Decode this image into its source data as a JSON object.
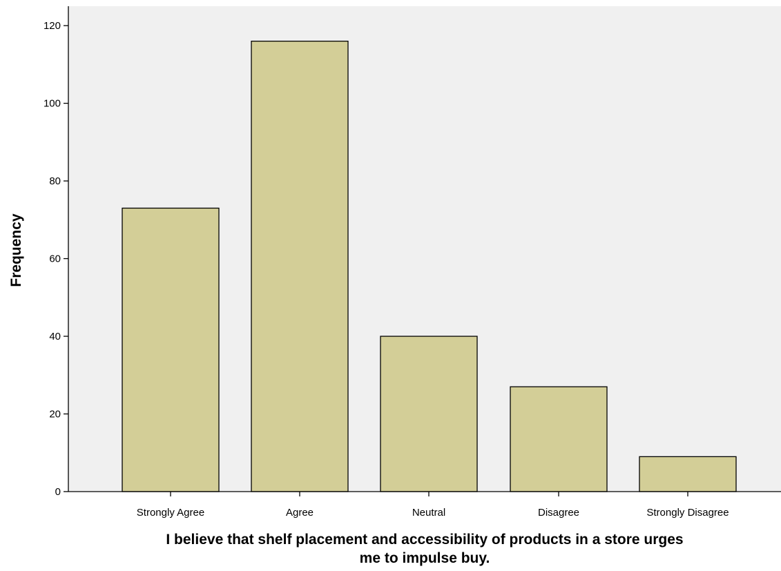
{
  "chart_data": {
    "type": "bar",
    "title": "",
    "categories": [
      "Strongly Agree",
      "Agree",
      "Neutral",
      "Disagree",
      "Strongly Disagree"
    ],
    "values": [
      73,
      116,
      40,
      27,
      9
    ],
    "xlabel_lines": [
      "I believe that shelf placement and accessibility of products in a store urges",
      "me to impulse buy."
    ],
    "ylabel": "Frequency",
    "ylim": [
      0,
      125
    ],
    "yticks": [
      0,
      20,
      40,
      60,
      80,
      100,
      120
    ],
    "grid": false,
    "legend": "none",
    "bar_color": "#d3ce97",
    "plot_background": "#f0f0f0"
  }
}
